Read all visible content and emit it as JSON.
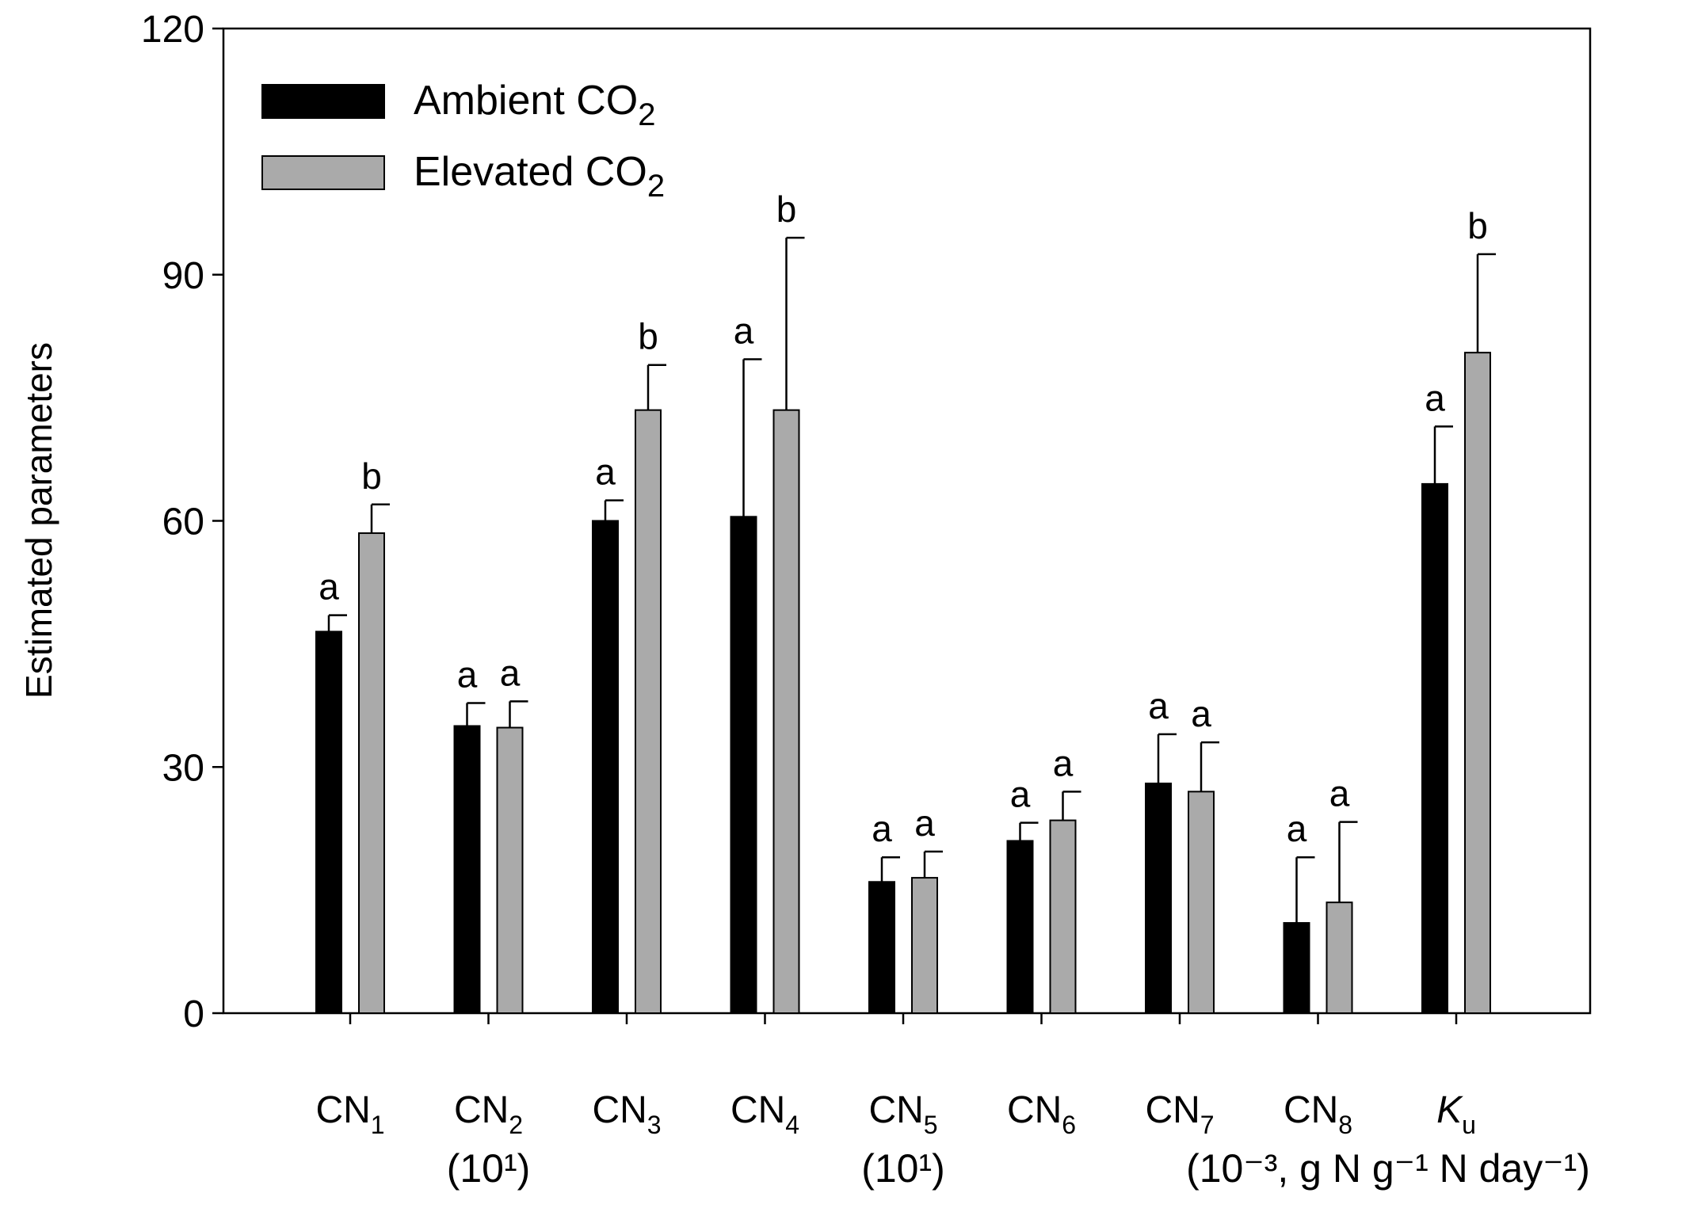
{
  "chart_data": {
    "type": "bar",
    "ylabel": "Estimated parameters",
    "ylim": [
      0,
      120
    ],
    "yticks": [
      0,
      30,
      60,
      90,
      120
    ],
    "grid": false,
    "legend_position": "top-left",
    "categories": [
      {
        "base": "CN",
        "sub": "1",
        "italic": false,
        "note": ""
      },
      {
        "base": "CN",
        "sub": "2",
        "italic": false,
        "note": "(10¹)"
      },
      {
        "base": "CN",
        "sub": "3",
        "italic": false,
        "note": ""
      },
      {
        "base": "CN",
        "sub": "4",
        "italic": false,
        "note": ""
      },
      {
        "base": "CN",
        "sub": "5",
        "italic": false,
        "note": "(10¹)"
      },
      {
        "base": "CN",
        "sub": "6",
        "italic": false,
        "note": ""
      },
      {
        "base": "CN",
        "sub": "7",
        "italic": false,
        "note": ""
      },
      {
        "base": "CN",
        "sub": "8",
        "italic": false,
        "note": ""
      },
      {
        "base": "K",
        "sub": "u",
        "italic": true,
        "note": ""
      }
    ],
    "unit_note": "(10⁻³, g N g⁻¹ N day⁻¹)",
    "series": [
      {
        "name": "Ambient CO2",
        "legend_base": "Ambient CO",
        "legend_sub": "2",
        "color": "#000000",
        "values": [
          46.5,
          35.0,
          60.0,
          60.5,
          16.0,
          21.0,
          28.0,
          11.0,
          64.5
        ],
        "errors": [
          2.0,
          2.8,
          2.5,
          19.2,
          3.0,
          2.2,
          6.0,
          8.0,
          7.0
        ],
        "letters": [
          "a",
          "a",
          "a",
          "a",
          "a",
          "a",
          "a",
          "a",
          "a"
        ]
      },
      {
        "name": "Elevated CO2",
        "legend_base": "Elevated CO",
        "legend_sub": "2",
        "color": "#aaaaaa",
        "values": [
          58.5,
          34.8,
          73.5,
          73.5,
          16.5,
          23.5,
          27.0,
          13.5,
          80.5
        ],
        "errors": [
          3.5,
          3.2,
          5.5,
          21.0,
          3.2,
          3.5,
          6.0,
          9.8,
          12.0
        ],
        "letters": [
          "b",
          "a",
          "b",
          "b",
          "a",
          "a",
          "a",
          "a",
          "b"
        ]
      }
    ]
  }
}
